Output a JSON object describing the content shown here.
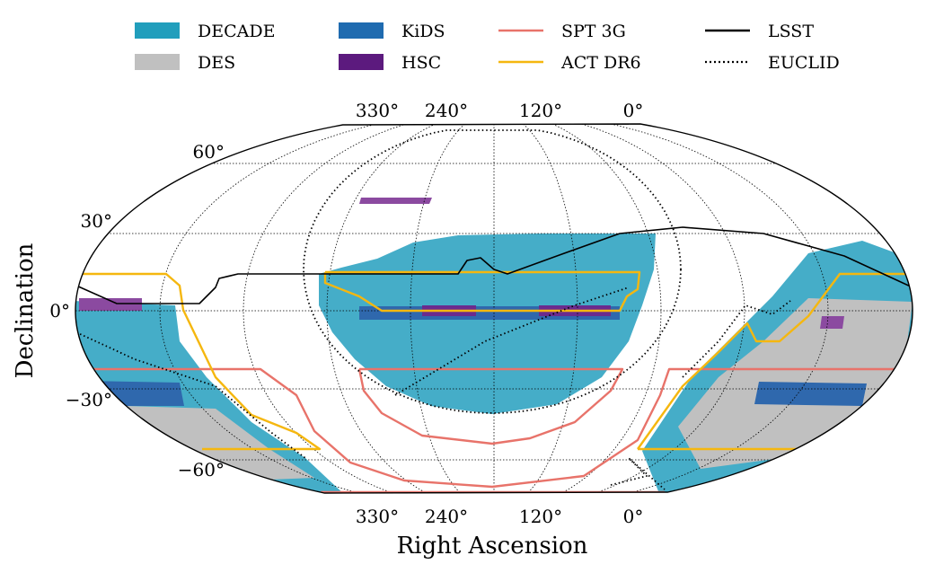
{
  "chart_data": {
    "type": "area",
    "projection": "mollweide",
    "xlabel": "Right Ascension",
    "ylabel": "Declination",
    "ra_tick_labels": [
      "330°",
      "240°",
      "120°",
      "0°"
    ],
    "dec_tick_labels": [
      "60°",
      "30°",
      "0°",
      "−30°",
      "−60°"
    ],
    "grid": true,
    "legend_position": "top",
    "legend": [
      {
        "name": "DECADE",
        "kind": "patch",
        "color": "#219ebc"
      },
      {
        "name": "DES",
        "kind": "patch",
        "color": "#c0c0c0"
      },
      {
        "name": "KiDS",
        "kind": "patch",
        "color": "#1f6bb0"
      },
      {
        "name": "HSC",
        "kind": "patch",
        "color": "#5c1a7e"
      },
      {
        "name": "SPT 3G",
        "kind": "line",
        "color": "#e8736a"
      },
      {
        "name": "ACT DR6",
        "kind": "line",
        "color": "#f5b70f"
      },
      {
        "name": "LSST",
        "kind": "line",
        "color": "#000000"
      },
      {
        "name": "EUCLID",
        "kind": "dotted-line",
        "color": "#000000"
      }
    ]
  }
}
